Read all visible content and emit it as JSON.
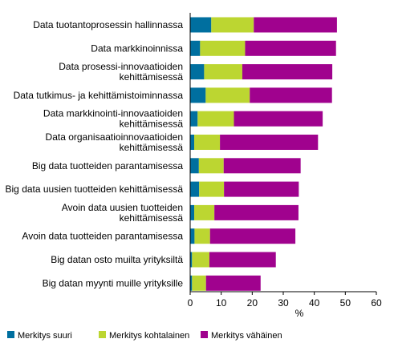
{
  "chart_data": {
    "type": "bar",
    "orientation": "horizontal",
    "stacked": true,
    "categories": [
      [
        "Data tuotantoprosessin hallinnassa"
      ],
      [
        "Data markkinoinnissa"
      ],
      [
        "Data prosessi-innovaatioiden",
        "kehittämisessä"
      ],
      [
        "Data tutkimus- ja kehittämistoiminnassa"
      ],
      [
        "Data markkinointi-innovaatioiden",
        "kehittämisessä"
      ],
      [
        "Data organisaatioinnovaatioiden",
        "kehittämisessä"
      ],
      [
        "Big data  tuotteiden parantamisessa"
      ],
      [
        "Big data uusien tuotteiden kehittämisessä"
      ],
      [
        "Avoin data uusien tuotteiden",
        "kehittämisessä"
      ],
      [
        "Avoin data tuotteiden parantamisessa"
      ],
      [
        "Big datan osto muilta yrityksiltä"
      ],
      [
        "Big datan myynti muille yrityksille"
      ]
    ],
    "series": [
      {
        "name": "Merkitys suuri",
        "color": "#006f9f",
        "values": [
          6.8,
          3.2,
          4.5,
          5.0,
          2.4,
          1.3,
          2.8,
          2.9,
          1.3,
          1.4,
          0.6,
          0.6
        ]
      },
      {
        "name": "Merkitys kohtalainen",
        "color": "#bcd631",
        "values": [
          13.7,
          14.5,
          12.3,
          14.2,
          11.7,
          8.3,
          8.0,
          8.0,
          6.5,
          5.0,
          5.6,
          4.5
        ]
      },
      {
        "name": "Merkitys vähäinen",
        "color": "#a0028e",
        "values": [
          26.8,
          29.3,
          29.0,
          26.5,
          28.6,
          31.6,
          24.8,
          24.1,
          27.1,
          27.5,
          21.4,
          17.6
        ]
      }
    ],
    "xlabel": "%",
    "xlim": [
      0,
      60
    ],
    "xticks": [
      0,
      10,
      20,
      30,
      40,
      50,
      60
    ],
    "grid": false,
    "legend_position": "bottom"
  }
}
